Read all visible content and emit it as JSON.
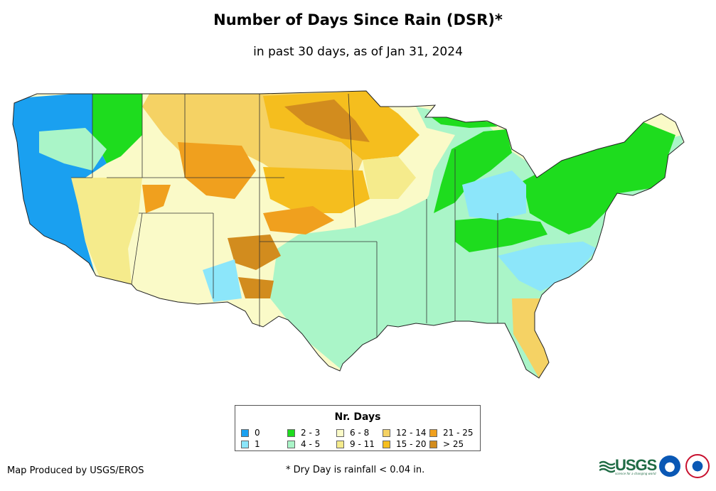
{
  "title": "Number of Days Since Rain (DSR)*",
  "subtitle": "in past 30 days, as of Jan 31, 2024",
  "legend": {
    "title": "Nr. Days",
    "items": [
      {
        "label": "0",
        "color": "#1aa0f0"
      },
      {
        "label": "1",
        "color": "#8ce6fa"
      },
      {
        "label": "2 - 3",
        "color": "#1edc1e"
      },
      {
        "label": "4 - 5",
        "color": "#aaf5c8"
      },
      {
        "label": "6 - 8",
        "color": "#fafac8"
      },
      {
        "label": "9 - 11",
        "color": "#f5eb8c"
      },
      {
        "label": "12 - 14",
        "color": "#f5d264"
      },
      {
        "label": "15 - 20",
        "color": "#f5be1e"
      },
      {
        "label": "21 - 25",
        "color": "#f0a01e"
      },
      {
        "label": "> 25",
        "color": "#d28c1e"
      }
    ]
  },
  "credit": "Map Produced by USGS/EROS",
  "footnote": "* Dry Day is rainfall < 0.04 in.",
  "logos": {
    "usgs_text": "USGS",
    "usgs_tagline": "science for a changing world"
  }
}
